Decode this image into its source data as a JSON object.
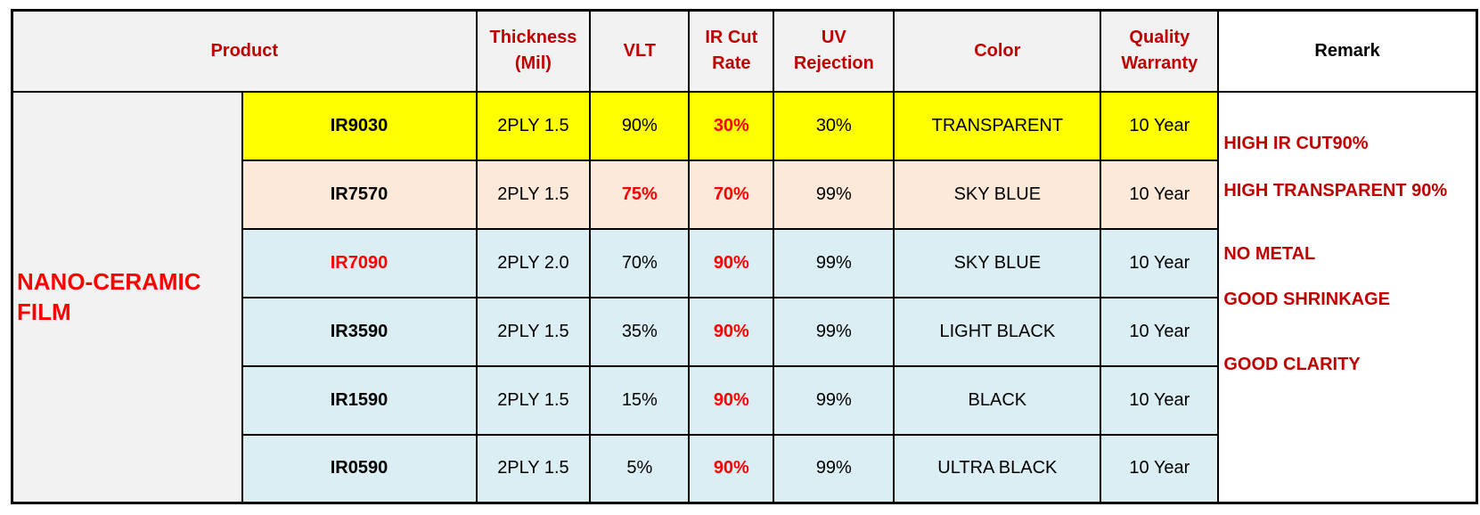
{
  "table": {
    "header": [
      "Product",
      "Thickness (Mil)",
      "VLT",
      "IR Cut Rate",
      "UV Rejection",
      "Color",
      "Quality Warranty",
      "Remark"
    ],
    "group": "NANO-CERAMIC FILM",
    "rows": [
      [
        "IR9030",
        "2PLY 1.5",
        "90%",
        "30%",
        "30%",
        "TRANSPARENT",
        "10 Year"
      ],
      [
        "IR7570",
        "2PLY 1.5",
        "75%",
        "70%",
        "99%",
        "SKY BLUE",
        "10 Year"
      ],
      [
        "IR7090",
        "2PLY 2.0",
        "70%",
        "90%",
        "99%",
        "SKY BLUE",
        "10 Year"
      ],
      [
        "IR3590",
        "2PLY 1.5",
        "35%",
        "90%",
        "99%",
        "LIGHT BLACK",
        "10 Year"
      ],
      [
        "IR1590",
        "2PLY 1.5",
        "15%",
        "90%",
        "99%",
        "BLACK",
        "10 Year"
      ],
      [
        "IR0590",
        "2PLY 1.5",
        "5%",
        "90%",
        "99%",
        "ULTRA BLACK",
        "10 Year"
      ]
    ],
    "remarks": [
      "HIGH IR CUT90%",
      "HIGH TRANSPARENT 90%",
      "NO METAL",
      "GOOD SHRINKAGE",
      "GOOD CLARITY"
    ]
  }
}
